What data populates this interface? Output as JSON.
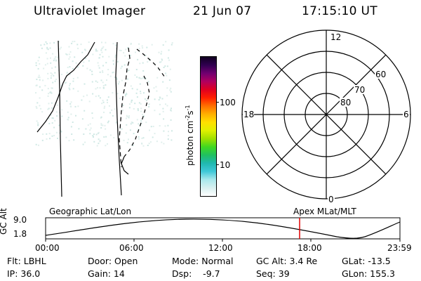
{
  "header": {
    "instrument": "Ultraviolet Imager",
    "date": "21 Jun 07",
    "time": "17:15:10 UT"
  },
  "colorbar": {
    "unit_label": "photon cm",
    "exp1": "-2",
    "mid": "s",
    "exp2": "-1",
    "ticks": [
      {
        "label": "100",
        "value": 100
      },
      {
        "label": "10",
        "value": 10
      }
    ],
    "colors": [
      "#ffffff",
      "#d8f0f0",
      "#a8e8ec",
      "#40c8d8",
      "#20b8b0",
      "#20c060",
      "#40d820",
      "#a0e000",
      "#e0f000",
      "#ffe000",
      "#ffb000",
      "#ff7000",
      "#ff2000",
      "#e00020",
      "#b00060",
      "#700070",
      "#300050",
      "#100020"
    ]
  },
  "polar_plot": {
    "labels": {
      "top": "12",
      "bottom": "0",
      "left": "18",
      "right": "6"
    },
    "lat_labels": [
      "80",
      "70",
      "60"
    ]
  },
  "timeline": {
    "ylabel": "GC Alt",
    "yticks": [
      "9.0",
      "1.8"
    ],
    "left_caption": "Geographic Lat/Lon",
    "right_caption": "Apex  MLat/MLT",
    "xticks": [
      "00:00",
      "06:00",
      "12:00",
      "18:00",
      "23:59"
    ],
    "marker_time": "17:15",
    "marker_color": "#e00000"
  },
  "status": {
    "row1": {
      "flt": "Flt: LBHL",
      "door": "Door: Open",
      "mode": "Mode: Normal",
      "gcalt": "GC Alt: 3.4 Re",
      "glat": "GLat: -13.5"
    },
    "row2": {
      "ip": "IP: 36.0",
      "gain": "Gain: 14",
      "dsp": "Dsp:    -9.7",
      "seq": "Seq: 39",
      "glon": "GLon: 155.3"
    }
  }
}
